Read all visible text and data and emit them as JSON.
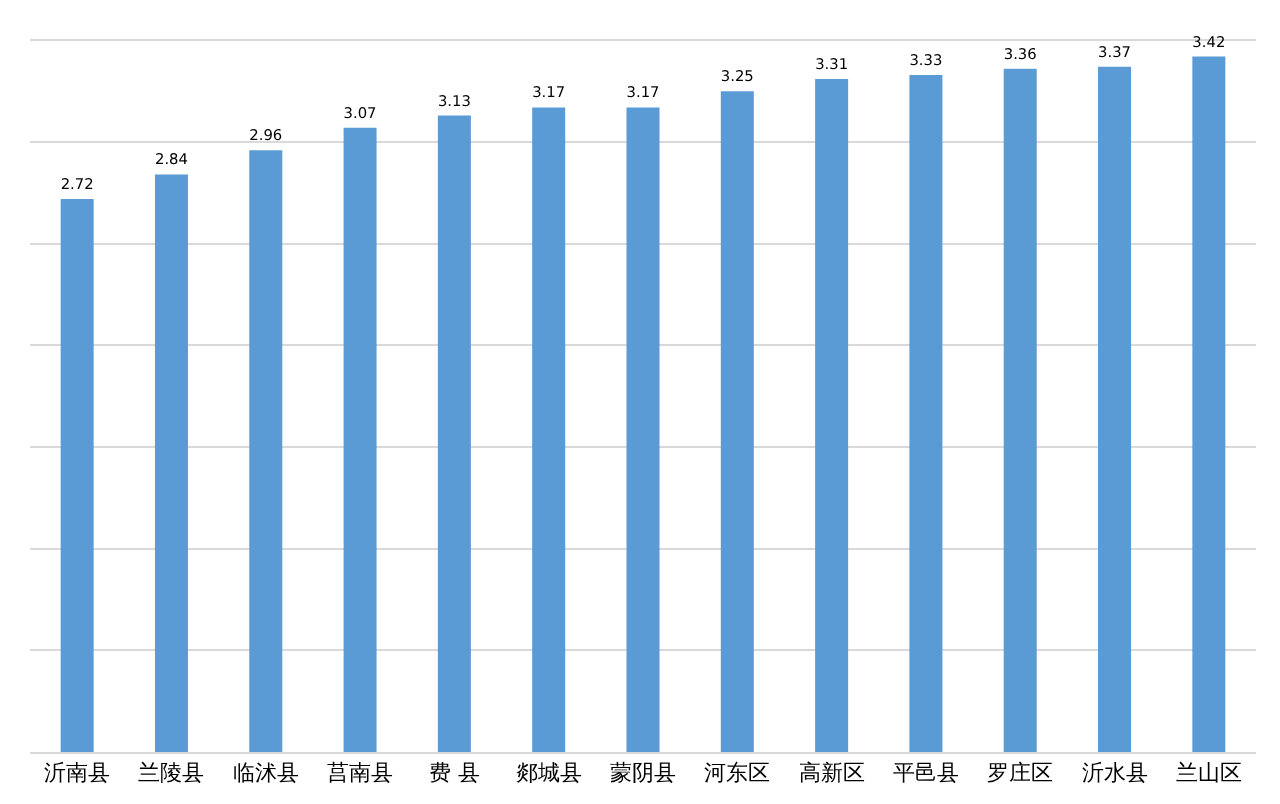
{
  "chart_data": {
    "type": "bar",
    "categories": [
      "沂南县",
      "兰陵县",
      "临沭县",
      "莒南县",
      "费 县",
      "郯城县",
      "蒙阴县",
      "河东区",
      "高新区",
      "平邑县",
      "罗庄区",
      "沂水县",
      "兰山区"
    ],
    "values": [
      2.72,
      2.84,
      2.96,
      3.07,
      3.13,
      3.17,
      3.17,
      3.25,
      3.31,
      3.33,
      3.36,
      3.37,
      3.42
    ],
    "color": "#5b9bd5",
    "tick_labels": "x",
    "grid": "y",
    "data_labels": true
  }
}
